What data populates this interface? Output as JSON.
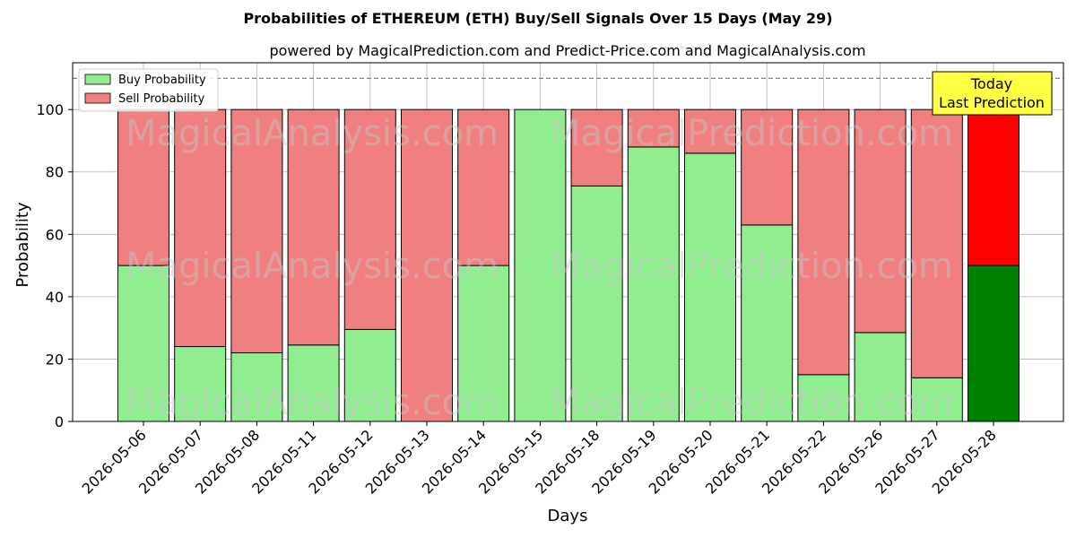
{
  "chart_data": {
    "type": "bar",
    "stacked": true,
    "title": "Probabilities of ETHEREUM (ETH) Buy/Sell Signals Over 15 Days (May 29)",
    "subtitle": "powered by MagicalPrediction.com and Predict-Price.com and MagicalAnalysis.com",
    "xlabel": "Days",
    "ylabel": "Probability",
    "ylim": [
      0,
      115
    ],
    "yticks": [
      0,
      20,
      40,
      60,
      80,
      100
    ],
    "grid": true,
    "legend_position": "top-left",
    "reference_line": 110,
    "categories": [
      "2026-05-06",
      "2026-05-07",
      "2026-05-08",
      "2026-05-11",
      "2026-05-12",
      "2026-05-13",
      "2026-05-14",
      "2026-05-15",
      "2026-05-18",
      "2026-05-19",
      "2026-05-20",
      "2026-05-21",
      "2026-05-22",
      "2026-05-26",
      "2026-05-27",
      "2026-05-28"
    ],
    "series": [
      {
        "name": "Buy Probability",
        "color": "#90ee90",
        "highlight_color": "#008000",
        "values": [
          50,
          24,
          22,
          24.5,
          29.5,
          0,
          50,
          100,
          75.5,
          88,
          86,
          63,
          15,
          28.5,
          14,
          50
        ]
      },
      {
        "name": "Sell Probability",
        "color": "#f08080",
        "highlight_color": "#ff0000",
        "values": [
          50,
          76,
          78,
          75.5,
          70.5,
          100,
          50,
          0,
          24.5,
          12,
          14,
          37,
          85,
          71.5,
          86,
          50
        ]
      }
    ],
    "highlight_index": 15,
    "annotation": {
      "line1": "Today",
      "line2": "Last Prediction",
      "color": "#ffff44"
    },
    "watermarks": [
      "MagicalAnalysis.com",
      "MagicalPrediction.com"
    ]
  }
}
